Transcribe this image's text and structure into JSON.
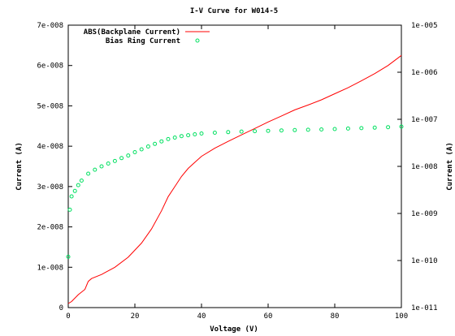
{
  "chart_data": {
    "type": "line",
    "title": "I-V Curve for W014-5",
    "xlabel": "Voltage (V)",
    "ylabel": "Current (A)",
    "y2label": "Current (A)",
    "xlim": [
      0,
      100
    ],
    "ylim": [
      0,
      7e-08
    ],
    "y2lim": [
      1e-11,
      1e-05
    ],
    "y2scale": "log",
    "grid": false,
    "legend_position": "top-left",
    "x_ticks": [
      0,
      20,
      40,
      60,
      80,
      100
    ],
    "x_tick_labels": [
      "0",
      "20",
      "40",
      "60",
      "80",
      "100"
    ],
    "y_ticks": [
      0,
      1e-08,
      2e-08,
      3e-08,
      4e-08,
      5e-08,
      6e-08,
      7e-08
    ],
    "y_tick_labels": [
      "0",
      "1e-008",
      "2e-008",
      "3e-008",
      "4e-008",
      "5e-008",
      "6e-008",
      "7e-008"
    ],
    "y2_ticks": [
      1e-11,
      1e-10,
      1e-09,
      1e-08,
      1e-07,
      1e-06,
      1e-05
    ],
    "y2_tick_labels": [
      "1e-011",
      "1e-010",
      "1e-009",
      "1e-008",
      "1e-007",
      "1e-006",
      "1e-005"
    ],
    "series": [
      {
        "name": "ABS(Backplane Current)",
        "axis": "y",
        "style": "line",
        "color": "#ff0000",
        "x": [
          0,
          1,
          3,
          5,
          6,
          7,
          10,
          14,
          18,
          22,
          25,
          28,
          30,
          32,
          34,
          36,
          38,
          40,
          44,
          48,
          52,
          56,
          60,
          64,
          68,
          72,
          76,
          80,
          84,
          88,
          92,
          96,
          100
        ],
        "y": [
          1e-09,
          1.5e-09,
          3.2e-09,
          4.5e-09,
          6.5e-09,
          7.2e-09,
          8.2e-09,
          1e-08,
          1.25e-08,
          1.6e-08,
          1.95e-08,
          2.4e-08,
          2.75e-08,
          3e-08,
          3.25e-08,
          3.45e-08,
          3.6e-08,
          3.75e-08,
          3.95e-08,
          4.12e-08,
          4.28e-08,
          4.44e-08,
          4.6e-08,
          4.75e-08,
          4.9e-08,
          5.02e-08,
          5.15e-08,
          5.3e-08,
          5.45e-08,
          5.62e-08,
          5.8e-08,
          6e-08,
          6.25e-08
        ]
      },
      {
        "name": "Bias Ring Current",
        "axis": "y2",
        "style": "points",
        "color": "#00e060",
        "x": [
          0,
          0.5,
          1,
          2,
          3,
          4,
          6,
          8,
          10,
          12,
          14,
          16,
          18,
          20,
          22,
          24,
          26,
          28,
          30,
          32,
          34,
          36,
          38,
          40,
          44,
          48,
          52,
          56,
          60,
          64,
          68,
          72,
          76,
          80,
          84,
          88,
          92,
          96,
          100
        ],
        "y": [
          1.2e-10,
          1.2e-09,
          2.3e-09,
          3e-09,
          4e-09,
          5e-09,
          7e-09,
          8.5e-09,
          1e-08,
          1.15e-08,
          1.3e-08,
          1.5e-08,
          1.7e-08,
          2e-08,
          2.3e-08,
          2.65e-08,
          3e-08,
          3.4e-08,
          3.8e-08,
          4.1e-08,
          4.4e-08,
          4.6e-08,
          4.8e-08,
          5e-08,
          5.2e-08,
          5.35e-08,
          5.5e-08,
          5.6e-08,
          5.7e-08,
          5.8e-08,
          5.9e-08,
          6e-08,
          6.1e-08,
          6.2e-08,
          6.35e-08,
          6.5e-08,
          6.65e-08,
          6.8e-08,
          7e-08
        ]
      }
    ]
  }
}
